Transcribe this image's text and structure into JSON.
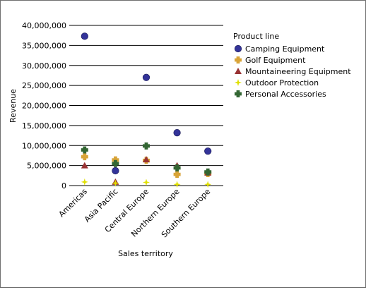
{
  "chart_data": {
    "type": "scatter",
    "xlabel": "Sales territory",
    "ylabel": "Revenue",
    "ylim": [
      0,
      40000000
    ],
    "yticks": [
      "0",
      "5,000,000",
      "10,000,000",
      "15,000,000",
      "20,000,000",
      "25,000,000",
      "30,000,000",
      "35,000,000",
      "40,000,000"
    ],
    "categories": [
      "Americas",
      "Asia Pacific",
      "Central Europe",
      "Northern Europe",
      "Southern Europe"
    ],
    "grid": "horizontal",
    "legend": {
      "title": "Product line",
      "placement": "right"
    },
    "series": [
      {
        "name": "Camping Equipment",
        "marker": "circle",
        "color": "#333399",
        "values": [
          37300000,
          3700000,
          27000000,
          13200000,
          8600000
        ]
      },
      {
        "name": "Golf Equipment",
        "marker": "plus",
        "color": "#d9a438",
        "values": [
          7200000,
          6400000,
          6300000,
          2800000,
          3000000
        ]
      },
      {
        "name": "Mountaineering Equipment",
        "marker": "triangle",
        "color": "#993333",
        "values": [
          5000000,
          900000,
          6500000,
          5000000,
          3200000
        ]
      },
      {
        "name": "Outdoor Protection",
        "marker": "star",
        "color": "#e0e000",
        "values": [
          900000,
          600000,
          800000,
          300000,
          300000
        ]
      },
      {
        "name": "Personal Accessories",
        "marker": "plus",
        "color": "#336633",
        "values": [
          8900000,
          5500000,
          9900000,
          4400000,
          3400000
        ]
      }
    ]
  }
}
